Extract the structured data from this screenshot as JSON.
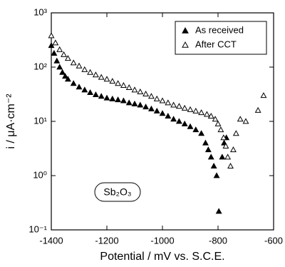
{
  "chart_data": {
    "type": "scatter",
    "xlabel": "Potential / mV vs. S.C.E.",
    "ylabel": "i / μA·cm⁻²",
    "annotation": "Sb₂O₃",
    "xlim": [
      -1400,
      -600
    ],
    "xticks": [
      -1400,
      -1200,
      -1000,
      -800,
      -600
    ],
    "ylim": [
      0.1,
      1000
    ],
    "yscale": "log",
    "yticks": [
      {
        "value": 1000,
        "label": "10³"
      },
      {
        "value": 100,
        "label": "10²"
      },
      {
        "value": 10,
        "label": "10¹"
      },
      {
        "value": 1,
        "label": "10⁰"
      },
      {
        "value": 0.1,
        "label": "10⁻¹"
      }
    ],
    "legend": "upper right",
    "series": [
      {
        "name": "As received",
        "marker": "filled",
        "color": "#000000",
        "x": [
          -1400,
          -1390,
          -1380,
          -1370,
          -1360,
          -1350,
          -1340,
          -1320,
          -1300,
          -1280,
          -1260,
          -1240,
          -1220,
          -1200,
          -1180,
          -1160,
          -1140,
          -1120,
          -1100,
          -1080,
          -1060,
          -1040,
          -1020,
          -1000,
          -980,
          -960,
          -940,
          -920,
          -900,
          -880,
          -860,
          -845,
          -835,
          -825,
          -815,
          -805,
          -797,
          -785,
          -778,
          -770
        ],
        "values": [
          250,
          180,
          130,
          100,
          80,
          68,
          60,
          50,
          43,
          38,
          34,
          31,
          29,
          27,
          26,
          25,
          24,
          22,
          21,
          20,
          18.5,
          17,
          15.5,
          14,
          12.5,
          11,
          10,
          9,
          8,
          7,
          6,
          4,
          3,
          2.2,
          1.5,
          1,
          0.22,
          2.2,
          4,
          5
        ]
      },
      {
        "name": "After CCT",
        "marker": "open",
        "color": "#000000",
        "x": [
          -1400,
          -1385,
          -1370,
          -1355,
          -1340,
          -1320,
          -1300,
          -1280,
          -1260,
          -1240,
          -1220,
          -1200,
          -1180,
          -1160,
          -1140,
          -1120,
          -1100,
          -1080,
          -1060,
          -1040,
          -1020,
          -1000,
          -980,
          -960,
          -940,
          -920,
          -900,
          -880,
          -860,
          -840,
          -825,
          -810,
          -800,
          -790,
          -780,
          -772,
          -765,
          -755,
          -745,
          -735,
          -720,
          -700,
          -656,
          -636
        ],
        "values": [
          380,
          280,
          210,
          170,
          145,
          120,
          105,
          90,
          80,
          72,
          65,
          60,
          55,
          50,
          46,
          42,
          38,
          35,
          32,
          29,
          26,
          24,
          22,
          20,
          19,
          17.5,
          16.5,
          15.5,
          14.5,
          13.5,
          12.5,
          11,
          9,
          7,
          5,
          3.5,
          2.2,
          1.5,
          3,
          6,
          11,
          10,
          16,
          30
        ]
      }
    ]
  }
}
